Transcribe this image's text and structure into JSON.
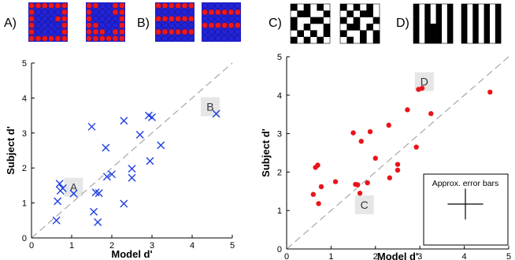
{
  "colors": {
    "blue": "#1f3fe0",
    "red": "#e8141a",
    "pattern_blue": "#2323d8",
    "pattern_red": "#f01818",
    "black": "#000000",
    "white": "#ffffff",
    "diagonal": "#a8a8a8",
    "annotation_bg": "#e6e6e6"
  },
  "panel_labels": [
    "A)",
    "B)",
    "C)",
    "D)"
  ],
  "patterns": {
    "A1": [
      "RRRRRR",
      "RBBBBR",
      "RBBBRR",
      "RBBBBR",
      "RBBBBR",
      "RRRRRR"
    ],
    "A2": [
      "RRBBRR",
      "RBBBRR",
      "RBBBBR",
      "RRBBBR",
      "RRRBRR",
      "RRRRRR"
    ],
    "B1": [
      "RRRRRR",
      "BBBBBB",
      "RRRRRR",
      "BBBBBB",
      "RRRRRR",
      "BBBBBB"
    ],
    "B2": [
      "BBBBBB",
      "RRRRRR",
      "BBBBBB",
      "RRRRRR",
      "BBBBBB",
      "BBBBBB"
    ],
    "C1": [
      "KWKWKW",
      "WKKWWK",
      "KWWKKW",
      "KWKWWK",
      "WKWKWK",
      "KWKWKW"
    ],
    "C2": [
      "KWKWKW",
      "WKWKKW",
      "KWKWWK",
      "WKKWKW",
      "KWWKWK",
      "WKWKWK"
    ],
    "D1": [
      "KWKWKWK",
      "KWKWKWK",
      "KWKWKWK",
      "KWKKKWK",
      "KWKKKWK",
      "KWKKKWK"
    ],
    "D2": [
      "KWKWKWK",
      "KWKWKWK",
      "KWKWKWK",
      "KWKWKWK",
      "KWKWKWK",
      "KWKWKWK"
    ]
  },
  "chart_data": [
    {
      "type": "scatter",
      "marker": "x",
      "color": "#1f3fe0",
      "xlabel": "Model d'",
      "ylabel": "Subject d'",
      "xlim": [
        0,
        5
      ],
      "ylim": [
        0,
        5
      ],
      "xticks": [
        "0",
        "1",
        "2",
        "3",
        "4",
        "5"
      ],
      "yticks": [
        "0",
        "1",
        "2",
        "3",
        "4",
        "5"
      ],
      "diagonal": true,
      "points": [
        {
          "x": 0.62,
          "y": 0.5
        },
        {
          "x": 0.65,
          "y": 1.05
        },
        {
          "x": 0.7,
          "y": 1.55
        },
        {
          "x": 0.72,
          "y": 1.35
        },
        {
          "x": 0.78,
          "y": 1.42
        },
        {
          "x": 1.05,
          "y": 1.27
        },
        {
          "x": 1.5,
          "y": 3.18
        },
        {
          "x": 1.55,
          "y": 0.75
        },
        {
          "x": 1.6,
          "y": 1.3
        },
        {
          "x": 1.65,
          "y": 0.45
        },
        {
          "x": 1.68,
          "y": 1.28
        },
        {
          "x": 1.85,
          "y": 2.58
        },
        {
          "x": 1.88,
          "y": 1.75
        },
        {
          "x": 2.0,
          "y": 1.82
        },
        {
          "x": 2.3,
          "y": 3.35
        },
        {
          "x": 2.3,
          "y": 0.98
        },
        {
          "x": 2.5,
          "y": 1.98
        },
        {
          "x": 2.5,
          "y": 1.72
        },
        {
          "x": 2.7,
          "y": 2.95
        },
        {
          "x": 2.92,
          "y": 3.5
        },
        {
          "x": 2.95,
          "y": 2.2
        },
        {
          "x": 3.0,
          "y": 3.45
        },
        {
          "x": 3.22,
          "y": 2.65
        },
        {
          "x": 4.6,
          "y": 3.55
        }
      ],
      "annotations": [
        {
          "text": "A",
          "x": 1.05,
          "y": 1.45
        },
        {
          "text": "B",
          "x": 4.45,
          "y": 3.75
        }
      ]
    },
    {
      "type": "scatter",
      "marker": "o",
      "color": "#e8141a",
      "xlabel": "Model d'",
      "ylabel": "Subject d'",
      "xlim": [
        0,
        5
      ],
      "ylim": [
        0,
        5
      ],
      "xticks": [
        "0",
        "1",
        "2",
        "3",
        "4",
        "5"
      ],
      "yticks": [
        "0",
        "1",
        "2",
        "3",
        "4",
        "5"
      ],
      "diagonal": true,
      "points": [
        {
          "x": 0.6,
          "y": 1.42
        },
        {
          "x": 0.65,
          "y": 2.12
        },
        {
          "x": 0.7,
          "y": 2.18
        },
        {
          "x": 0.72,
          "y": 1.18
        },
        {
          "x": 0.78,
          "y": 1.62
        },
        {
          "x": 1.1,
          "y": 1.75
        },
        {
          "x": 1.5,
          "y": 3.02
        },
        {
          "x": 1.55,
          "y": 1.68
        },
        {
          "x": 1.6,
          "y": 1.67
        },
        {
          "x": 1.65,
          "y": 1.45
        },
        {
          "x": 1.68,
          "y": 2.8
        },
        {
          "x": 1.82,
          "y": 1.72
        },
        {
          "x": 1.88,
          "y": 3.05
        },
        {
          "x": 2.0,
          "y": 2.36
        },
        {
          "x": 2.3,
          "y": 3.22
        },
        {
          "x": 2.32,
          "y": 1.85
        },
        {
          "x": 2.5,
          "y": 2.2
        },
        {
          "x": 2.5,
          "y": 2.05
        },
        {
          "x": 2.72,
          "y": 3.62
        },
        {
          "x": 2.92,
          "y": 2.65
        },
        {
          "x": 2.97,
          "y": 4.15
        },
        {
          "x": 3.05,
          "y": 4.18
        },
        {
          "x": 3.25,
          "y": 3.52
        },
        {
          "x": 4.58,
          "y": 4.08
        }
      ],
      "annotations": [
        {
          "text": "D",
          "x": 3.1,
          "y": 4.35
        },
        {
          "text": "C",
          "x": 1.75,
          "y": 1.15
        }
      ],
      "legend_text": "Approx. error bars",
      "error_bar": {
        "x": 0.4,
        "y": 0.4
      }
    }
  ]
}
